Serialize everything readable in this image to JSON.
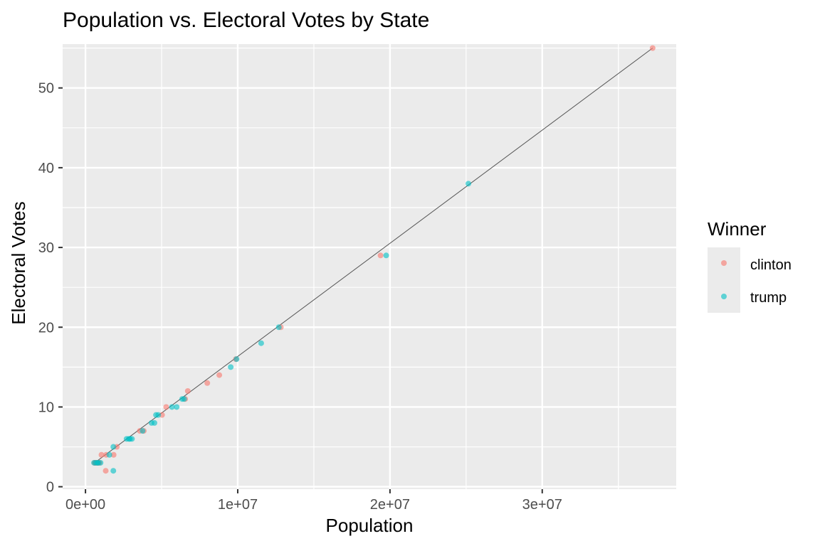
{
  "chart_data": {
    "type": "scatter",
    "title": "Population vs. Electoral Votes by State",
    "xlabel": "Population",
    "ylabel": "Electoral Votes",
    "xlim": [
      -1500000,
      38800000
    ],
    "ylim": [
      -0.3,
      55.5
    ],
    "grid": true,
    "x_ticks": [
      {
        "value": 0,
        "label": "0e+00"
      },
      {
        "value": 10000000,
        "label": "1e+07"
      },
      {
        "value": 20000000,
        "label": "2e+07"
      },
      {
        "value": 30000000,
        "label": "3e+07"
      }
    ],
    "y_ticks": [
      {
        "value": 0,
        "label": "0"
      },
      {
        "value": 10,
        "label": "10"
      },
      {
        "value": 20,
        "label": "20"
      },
      {
        "value": 30,
        "label": "30"
      },
      {
        "value": 40,
        "label": "40"
      },
      {
        "value": 50,
        "label": "50"
      }
    ],
    "legend": {
      "title": "Winner",
      "position": "right",
      "entries": [
        {
          "label": "clinton",
          "color": "#F8766D"
        },
        {
          "label": "trump",
          "color": "#00BFC4"
        }
      ]
    },
    "trend_line": {
      "x": [
        600000,
        37250000
      ],
      "y": [
        3,
        55
      ],
      "color": "#555555"
    },
    "series": [
      {
        "name": "clinton",
        "color": "#F8766D",
        "x": [
          37250000,
          19380000,
          12830000,
          9880000,
          8790000,
          8000000,
          6720000,
          6550000,
          5300000,
          5030000,
          3830000,
          3570000,
          2060000,
          1850000,
          1360000,
          1330000,
          1050000,
          900000,
          890000,
          760000,
          700000,
          600000,
          625000
        ],
        "y": [
          55,
          29,
          20,
          16,
          14,
          13,
          12,
          11,
          10,
          9,
          7,
          7,
          5,
          4,
          4,
          2,
          4,
          3,
          3,
          3,
          3,
          3,
          3
        ]
      },
      {
        "name": "trump",
        "color": "#00BFC4",
        "x": [
          25150000,
          19750000,
          12700000,
          11540000,
          9920000,
          9540000,
          6480000,
          6350000,
          5990000,
          5680000,
          4780000,
          4630000,
          4530000,
          4340000,
          3750000,
          3050000,
          2920000,
          2850000,
          2700000,
          1830000,
          1830000,
          1570000,
          990000,
          820000,
          810000,
          680000,
          560000
        ],
        "y": [
          38,
          29,
          20,
          18,
          16,
          15,
          11,
          11,
          10,
          10,
          9,
          9,
          8,
          8,
          7,
          6,
          6,
          6,
          6,
          5,
          2,
          4,
          3,
          3,
          3,
          3,
          3
        ]
      }
    ]
  }
}
